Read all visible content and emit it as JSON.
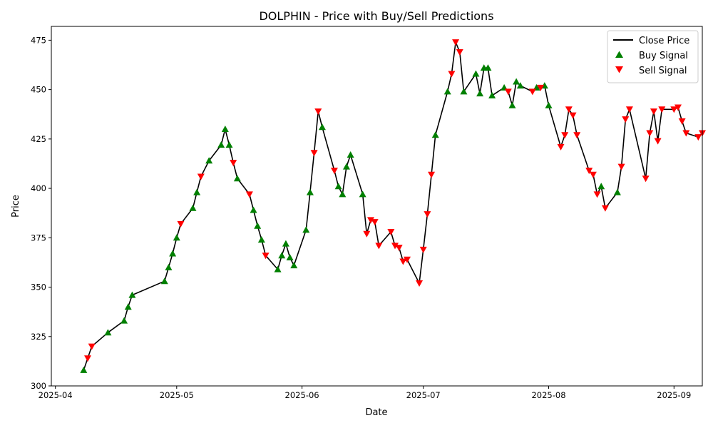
{
  "chart_data": {
    "type": "line",
    "title": "DOLPHIN - Price with Buy/Sell Predictions",
    "xlabel": "Date",
    "ylabel": "Price",
    "xlim": [
      "2025-03-31",
      "2025-09-08"
    ],
    "ylim": [
      300,
      482
    ],
    "x_ticks": [
      "2025-04",
      "2025-05",
      "2025-06",
      "2025-07",
      "2025-08",
      "2025-09"
    ],
    "x_tick_dates": [
      "2025-04-01",
      "2025-05-01",
      "2025-06-01",
      "2025-07-01",
      "2025-08-01",
      "2025-09-01"
    ],
    "y_ticks": [
      300,
      325,
      350,
      375,
      400,
      425,
      450,
      475
    ],
    "legend": {
      "position": "top-right",
      "entries": [
        "Close Price",
        "Buy Signal",
        "Sell Signal"
      ]
    },
    "colors": {
      "line": "#000000",
      "buy": "#008000",
      "sell": "#ff0000"
    },
    "series": [
      {
        "name": "Close Price",
        "kind": "line",
        "points": [
          [
            "2025-04-08",
            308
          ],
          [
            "2025-04-09",
            314
          ],
          [
            "2025-04-10",
            320
          ],
          [
            "2025-04-14",
            327
          ],
          [
            "2025-04-18",
            333
          ],
          [
            "2025-04-19",
            340
          ],
          [
            "2025-04-20",
            346
          ],
          [
            "2025-04-28",
            353
          ],
          [
            "2025-04-29",
            360
          ],
          [
            "2025-04-30",
            367
          ],
          [
            "2025-05-01",
            375
          ],
          [
            "2025-05-02",
            382
          ],
          [
            "2025-05-05",
            390
          ],
          [
            "2025-05-06",
            398
          ],
          [
            "2025-05-07",
            406
          ],
          [
            "2025-05-09",
            414
          ],
          [
            "2025-05-12",
            422
          ],
          [
            "2025-05-13",
            430
          ],
          [
            "2025-05-14",
            422
          ],
          [
            "2025-05-15",
            413
          ],
          [
            "2025-05-16",
            405
          ],
          [
            "2025-05-19",
            397
          ],
          [
            "2025-05-20",
            389
          ],
          [
            "2025-05-21",
            381
          ],
          [
            "2025-05-22",
            374
          ],
          [
            "2025-05-23",
            366
          ],
          [
            "2025-05-26",
            359
          ],
          [
            "2025-05-27",
            366
          ],
          [
            "2025-05-28",
            372
          ],
          [
            "2025-05-29",
            365
          ],
          [
            "2025-05-30",
            361
          ],
          [
            "2025-06-02",
            379
          ],
          [
            "2025-06-03",
            398
          ],
          [
            "2025-06-04",
            418
          ],
          [
            "2025-06-05",
            439
          ],
          [
            "2025-06-06",
            431
          ],
          [
            "2025-06-09",
            409
          ],
          [
            "2025-06-10",
            401
          ],
          [
            "2025-06-11",
            397
          ],
          [
            "2025-06-12",
            411
          ],
          [
            "2025-06-13",
            417
          ],
          [
            "2025-06-16",
            397
          ],
          [
            "2025-06-17",
            377
          ],
          [
            "2025-06-18",
            384
          ],
          [
            "2025-06-19",
            383
          ],
          [
            "2025-06-20",
            371
          ],
          [
            "2025-06-23",
            378
          ],
          [
            "2025-06-24",
            371
          ],
          [
            "2025-06-25",
            370
          ],
          [
            "2025-06-26",
            363
          ],
          [
            "2025-06-27",
            364
          ],
          [
            "2025-06-30",
            352
          ],
          [
            "2025-07-01",
            369
          ],
          [
            "2025-07-02",
            387
          ],
          [
            "2025-07-03",
            407
          ],
          [
            "2025-07-04",
            427
          ],
          [
            "2025-07-07",
            449
          ],
          [
            "2025-07-08",
            458
          ],
          [
            "2025-07-09",
            474
          ],
          [
            "2025-07-10",
            469
          ],
          [
            "2025-07-11",
            449
          ],
          [
            "2025-07-14",
            458
          ],
          [
            "2025-07-15",
            448
          ],
          [
            "2025-07-16",
            461
          ],
          [
            "2025-07-17",
            461
          ],
          [
            "2025-07-18",
            447
          ],
          [
            "2025-07-21",
            451
          ],
          [
            "2025-07-22",
            449
          ],
          [
            "2025-07-23",
            442
          ],
          [
            "2025-07-24",
            454
          ],
          [
            "2025-07-25",
            452
          ],
          [
            "2025-07-28",
            449
          ],
          [
            "2025-07-29",
            451
          ],
          [
            "2025-07-30",
            451
          ],
          [
            "2025-07-31",
            452
          ],
          [
            "2025-08-01",
            442
          ],
          [
            "2025-08-04",
            421
          ],
          [
            "2025-08-05",
            427
          ],
          [
            "2025-08-06",
            440
          ],
          [
            "2025-08-07",
            437
          ],
          [
            "2025-08-08",
            427
          ],
          [
            "2025-08-11",
            409
          ],
          [
            "2025-08-12",
            407
          ],
          [
            "2025-08-13",
            397
          ],
          [
            "2025-08-14",
            401
          ],
          [
            "2025-08-15",
            390
          ],
          [
            "2025-08-18",
            398
          ],
          [
            "2025-08-19",
            411
          ],
          [
            "2025-08-20",
            435
          ],
          [
            "2025-08-21",
            440
          ],
          [
            "2025-08-25",
            405
          ],
          [
            "2025-08-26",
            428
          ],
          [
            "2025-08-27",
            439
          ],
          [
            "2025-08-28",
            424
          ],
          [
            "2025-08-29",
            440
          ],
          [
            "2025-09-01",
            440
          ],
          [
            "2025-09-02",
            441
          ],
          [
            "2025-09-03",
            434
          ],
          [
            "2025-09-04",
            428
          ],
          [
            "2025-09-07",
            426
          ],
          [
            "2025-09-08",
            428
          ]
        ]
      },
      {
        "name": "Buy Signal",
        "kind": "marker-triangle-up",
        "points": [
          [
            "2025-04-08",
            308
          ],
          [
            "2025-04-14",
            327
          ],
          [
            "2025-04-18",
            333
          ],
          [
            "2025-04-19",
            340
          ],
          [
            "2025-04-20",
            346
          ],
          [
            "2025-04-28",
            353
          ],
          [
            "2025-04-29",
            360
          ],
          [
            "2025-04-30",
            367
          ],
          [
            "2025-05-01",
            375
          ],
          [
            "2025-05-05",
            390
          ],
          [
            "2025-05-06",
            398
          ],
          [
            "2025-05-09",
            414
          ],
          [
            "2025-05-12",
            422
          ],
          [
            "2025-05-13",
            430
          ],
          [
            "2025-05-14",
            422
          ],
          [
            "2025-05-16",
            405
          ],
          [
            "2025-05-20",
            389
          ],
          [
            "2025-05-21",
            381
          ],
          [
            "2025-05-22",
            374
          ],
          [
            "2025-05-26",
            359
          ],
          [
            "2025-05-27",
            366
          ],
          [
            "2025-05-28",
            372
          ],
          [
            "2025-05-29",
            365
          ],
          [
            "2025-05-30",
            361
          ],
          [
            "2025-06-02",
            379
          ],
          [
            "2025-06-03",
            398
          ],
          [
            "2025-06-06",
            431
          ],
          [
            "2025-06-10",
            401
          ],
          [
            "2025-06-11",
            397
          ],
          [
            "2025-06-12",
            411
          ],
          [
            "2025-06-13",
            417
          ],
          [
            "2025-06-16",
            397
          ],
          [
            "2025-07-04",
            427
          ],
          [
            "2025-07-07",
            449
          ],
          [
            "2025-07-11",
            449
          ],
          [
            "2025-07-14",
            458
          ],
          [
            "2025-07-15",
            448
          ],
          [
            "2025-07-16",
            461
          ],
          [
            "2025-07-17",
            461
          ],
          [
            "2025-07-18",
            447
          ],
          [
            "2025-07-21",
            451
          ],
          [
            "2025-07-23",
            442
          ],
          [
            "2025-07-24",
            454
          ],
          [
            "2025-07-25",
            452
          ],
          [
            "2025-07-29",
            451
          ],
          [
            "2025-07-31",
            452
          ],
          [
            "2025-08-01",
            442
          ],
          [
            "2025-08-14",
            401
          ],
          [
            "2025-08-18",
            398
          ]
        ]
      },
      {
        "name": "Sell Signal",
        "kind": "marker-triangle-down",
        "points": [
          [
            "2025-04-09",
            314
          ],
          [
            "2025-04-10",
            320
          ],
          [
            "2025-05-02",
            382
          ],
          [
            "2025-05-07",
            406
          ],
          [
            "2025-05-15",
            413
          ],
          [
            "2025-05-19",
            397
          ],
          [
            "2025-05-23",
            366
          ],
          [
            "2025-06-04",
            418
          ],
          [
            "2025-06-05",
            439
          ],
          [
            "2025-06-09",
            409
          ],
          [
            "2025-06-17",
            377
          ],
          [
            "2025-06-18",
            384
          ],
          [
            "2025-06-19",
            383
          ],
          [
            "2025-06-20",
            371
          ],
          [
            "2025-06-23",
            378
          ],
          [
            "2025-06-24",
            371
          ],
          [
            "2025-06-25",
            370
          ],
          [
            "2025-06-26",
            363
          ],
          [
            "2025-06-27",
            364
          ],
          [
            "2025-06-30",
            352
          ],
          [
            "2025-07-01",
            369
          ],
          [
            "2025-07-02",
            387
          ],
          [
            "2025-07-03",
            407
          ],
          [
            "2025-07-08",
            458
          ],
          [
            "2025-07-09",
            474
          ],
          [
            "2025-07-10",
            469
          ],
          [
            "2025-07-22",
            449
          ],
          [
            "2025-07-28",
            449
          ],
          [
            "2025-07-30",
            451
          ],
          [
            "2025-08-04",
            421
          ],
          [
            "2025-08-05",
            427
          ],
          [
            "2025-08-06",
            440
          ],
          [
            "2025-08-07",
            437
          ],
          [
            "2025-08-08",
            427
          ],
          [
            "2025-08-11",
            409
          ],
          [
            "2025-08-12",
            407
          ],
          [
            "2025-08-13",
            397
          ],
          [
            "2025-08-15",
            390
          ],
          [
            "2025-08-19",
            411
          ],
          [
            "2025-08-20",
            435
          ],
          [
            "2025-08-21",
            440
          ],
          [
            "2025-08-25",
            405
          ],
          [
            "2025-08-26",
            428
          ],
          [
            "2025-08-27",
            439
          ],
          [
            "2025-08-28",
            424
          ],
          [
            "2025-08-29",
            440
          ],
          [
            "2025-09-01",
            440
          ],
          [
            "2025-09-02",
            441
          ],
          [
            "2025-09-03",
            434
          ],
          [
            "2025-09-04",
            428
          ],
          [
            "2025-09-07",
            426
          ],
          [
            "2025-09-08",
            428
          ]
        ]
      }
    ]
  }
}
